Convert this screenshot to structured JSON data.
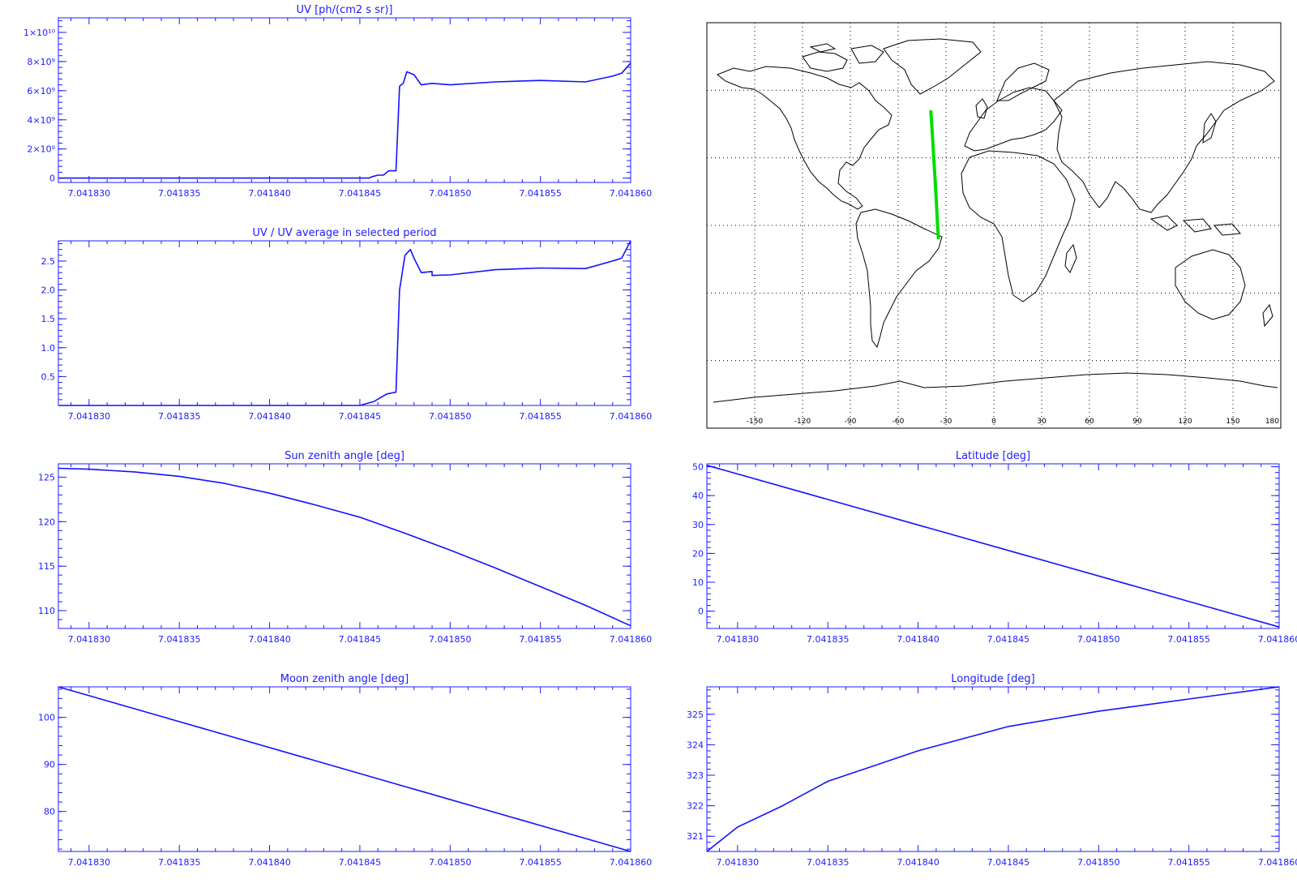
{
  "colors": {
    "plot": "#1212ff",
    "axis": "#1c1cff",
    "track": "#00dd00",
    "map_frame": "#000000",
    "background": "#ffffff"
  },
  "x_tick_labels": [
    "7.041830",
    "7.041835",
    "7.041840",
    "7.041845",
    "7.041850",
    "7.041855",
    "7.041860"
  ],
  "chart_data": [
    {
      "id": "uv",
      "type": "line",
      "title": "UV [ph/(cm2 s sr)]",
      "xlim": [
        7.0418283,
        7.04186
      ],
      "ylim": [
        -300000000.0,
        11000000000.0
      ],
      "yticks": [
        0,
        2000000000.0,
        4000000000.0,
        6000000000.0,
        8000000000.0,
        10000000000.0
      ],
      "ytick_labels": [
        "0",
        "2×10⁹",
        "4×10⁹",
        "6×10⁹",
        "8×10⁹",
        "1×10¹⁰"
      ],
      "points": [
        [
          7.0418283,
          0
        ],
        [
          7.04184,
          0
        ],
        [
          7.0418455,
          0
        ],
        [
          7.0418457,
          100000000.0
        ],
        [
          7.041846,
          200000000.0
        ],
        [
          7.0418463,
          200000000.0
        ],
        [
          7.0418466,
          500000000.0
        ],
        [
          7.041847,
          500000000.0
        ],
        [
          7.0418472,
          6300000000.0
        ],
        [
          7.0418474,
          6500000000.0
        ],
        [
          7.0418476,
          7300000000.0
        ],
        [
          7.041848,
          7100000000.0
        ],
        [
          7.0418484,
          6400000000.0
        ],
        [
          7.041849,
          6500000000.0
        ],
        [
          7.04185,
          6400000000.0
        ],
        [
          7.0418525,
          6600000000.0
        ],
        [
          7.041855,
          6700000000.0
        ],
        [
          7.0418575,
          6600000000.0
        ],
        [
          7.041859,
          7000000000.0
        ],
        [
          7.0418595,
          7200000000.0
        ],
        [
          7.04186,
          7900000000.0
        ]
      ]
    },
    {
      "id": "uv-ratio",
      "type": "line",
      "title": "UV / UV average in selected period",
      "xlim": [
        7.0418283,
        7.04186
      ],
      "ylim": [
        0,
        2.85
      ],
      "yticks": [
        0.5,
        1.0,
        1.5,
        2.0,
        2.5
      ],
      "ytick_labels": [
        "0.5",
        "1.0",
        "1.5",
        "2.0",
        "2.5"
      ],
      "points": [
        [
          7.0418283,
          0
        ],
        [
          7.041845,
          0
        ],
        [
          7.0418458,
          0.07
        ],
        [
          7.041846,
          0.11
        ],
        [
          7.0418465,
          0.2
        ],
        [
          7.041847,
          0.23
        ],
        [
          7.0418472,
          2.0
        ],
        [
          7.0418475,
          2.6
        ],
        [
          7.0418478,
          2.7
        ],
        [
          7.041848,
          2.55
        ],
        [
          7.0418484,
          2.3
        ],
        [
          7.041849,
          2.32
        ],
        [
          7.041849,
          2.25
        ],
        [
          7.04185,
          2.26
        ],
        [
          7.0418525,
          2.35
        ],
        [
          7.041855,
          2.38
        ],
        [
          7.0418575,
          2.37
        ],
        [
          7.041859,
          2.5
        ],
        [
          7.0418595,
          2.55
        ],
        [
          7.04186,
          2.85
        ]
      ]
    },
    {
      "id": "sun-zenith",
      "type": "line",
      "title": "Sun zenith angle [deg]",
      "xlim": [
        7.0418283,
        7.04186
      ],
      "ylim": [
        108,
        126.5
      ],
      "yticks": [
        110,
        115,
        120,
        125
      ],
      "ytick_labels": [
        "110",
        "115",
        "120",
        "125"
      ],
      "points": [
        [
          7.0418283,
          126.0
        ],
        [
          7.04183,
          125.9
        ],
        [
          7.0418325,
          125.6
        ],
        [
          7.041835,
          125.1
        ],
        [
          7.0418375,
          124.3
        ],
        [
          7.04184,
          123.2
        ],
        [
          7.0418425,
          121.9
        ],
        [
          7.041845,
          120.5
        ],
        [
          7.0418475,
          118.7
        ],
        [
          7.04185,
          116.8
        ],
        [
          7.0418525,
          114.8
        ],
        [
          7.041855,
          112.7
        ],
        [
          7.0418575,
          110.6
        ],
        [
          7.04186,
          108.3
        ]
      ]
    },
    {
      "id": "latitude",
      "type": "line",
      "title": "Latitude [deg]",
      "xlim": [
        7.0418283,
        7.04186
      ],
      "ylim": [
        -6,
        51
      ],
      "yticks": [
        0,
        10,
        20,
        30,
        40,
        50
      ],
      "ytick_labels": [
        "0",
        "10",
        "20",
        "30",
        "40",
        "50"
      ],
      "points": [
        [
          7.0418283,
          50.5
        ],
        [
          7.04186,
          -5.5
        ]
      ]
    },
    {
      "id": "moon-zenith",
      "type": "line",
      "title": "Moon zenith angle [deg]",
      "xlim": [
        7.0418283,
        7.04186
      ],
      "ylim": [
        71.5,
        106.5
      ],
      "yticks": [
        80,
        90,
        100
      ],
      "ytick_labels": [
        "80",
        "90",
        "100"
      ],
      "points": [
        [
          7.0418283,
          106.5
        ],
        [
          7.04186,
          71.5
        ]
      ]
    },
    {
      "id": "longitude",
      "type": "line",
      "title": "Longitude [deg]",
      "xlim": [
        7.0418283,
        7.04186
      ],
      "ylim": [
        320.5,
        325.9
      ],
      "yticks": [
        321,
        322,
        323,
        324,
        325
      ],
      "ytick_labels": [
        "321",
        "322",
        "323",
        "324",
        "325"
      ],
      "points": [
        [
          7.0418283,
          320.5
        ],
        [
          7.04183,
          321.3
        ],
        [
          7.0418325,
          322.0
        ],
        [
          7.041835,
          322.8
        ],
        [
          7.0418375,
          323.3
        ],
        [
          7.04184,
          323.8
        ],
        [
          7.0418425,
          324.2
        ],
        [
          7.041845,
          324.6
        ],
        [
          7.0418475,
          324.85
        ],
        [
          7.04185,
          325.1
        ],
        [
          7.0418525,
          325.3
        ],
        [
          7.041855,
          325.5
        ],
        [
          7.0418575,
          325.7
        ],
        [
          7.04186,
          325.9
        ]
      ]
    }
  ],
  "map": {
    "x_tick_labels": [
      "-150",
      "-120",
      "-90",
      "-60",
      "-30",
      "0",
      "30",
      "60",
      "90",
      "120",
      "150",
      "180"
    ],
    "lon_range": [
      -180,
      180
    ],
    "lat_range": [
      -90,
      90
    ],
    "track": [
      [
        -39.5,
        50.5
      ],
      [
        -38.5,
        40
      ],
      [
        -37.7,
        30
      ],
      [
        -36.8,
        20
      ],
      [
        -36.0,
        10
      ],
      [
        -35.3,
        0
      ],
      [
        -34.8,
        -5.5
      ]
    ]
  }
}
